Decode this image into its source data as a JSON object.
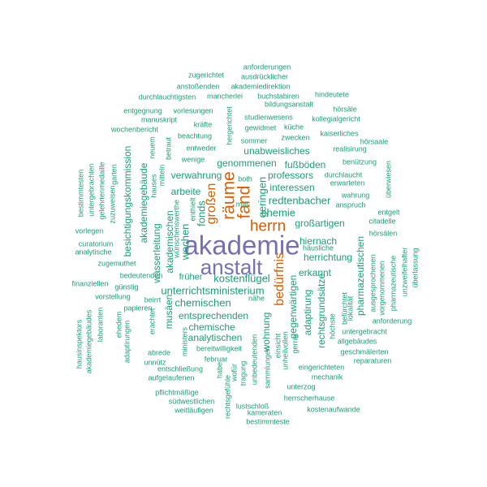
{
  "colors": {
    "purple": "#7670b3",
    "orange": "#d95f02",
    "green": "#1b9e77"
  },
  "words": [
    {
      "text": "akademie",
      "level": 1,
      "color": "purple"
    },
    {
      "text": "anstalt",
      "level": 2,
      "color": "purple"
    },
    {
      "text": "räume",
      "level": 3,
      "color": "orange"
    },
    {
      "text": "fand",
      "level": 3,
      "color": "orange"
    },
    {
      "text": "herrn",
      "level": 3,
      "color": "orange"
    },
    {
      "text": "bedürfnis",
      "level": 4,
      "color": "orange"
    },
    {
      "text": "großen",
      "level": 4,
      "color": "orange"
    },
    {
      "text": "chemie",
      "level": 5,
      "color": "green"
    },
    {
      "text": "redtenbacher",
      "level": 5,
      "color": "green"
    },
    {
      "text": "unterrichtsministerium",
      "level": 5,
      "color": "green"
    },
    {
      "text": "kostenflügel",
      "level": 5,
      "color": "green"
    },
    {
      "text": "geringen",
      "level": 5,
      "color": "green"
    },
    {
      "text": "fonds",
      "level": 5,
      "color": "green"
    },
    {
      "text": "wochen",
      "level": 5,
      "color": "green"
    },
    {
      "text": "chemischen",
      "level": 5,
      "color": "green"
    },
    {
      "text": "professors",
      "level": 5,
      "color": "green"
    },
    {
      "text": "unabweisliches",
      "level": 5,
      "color": "green"
    },
    {
      "text": "genommenen",
      "level": 5,
      "color": "green"
    },
    {
      "text": "verwahrung",
      "level": 5,
      "color": "green"
    },
    {
      "text": "arbeite",
      "level": 5,
      "color": "green"
    },
    {
      "text": "interessen",
      "level": 5,
      "color": "green"
    },
    {
      "text": "fußböden",
      "level": 5,
      "color": "green"
    },
    {
      "text": "entsprechenden",
      "level": 5,
      "color": "green"
    },
    {
      "text": "analytischen",
      "level": 5,
      "color": "green"
    },
    {
      "text": "chemische",
      "level": 5,
      "color": "green"
    },
    {
      "text": "früher",
      "level": 5,
      "color": "green"
    },
    {
      "text": "herrichtung",
      "level": 5,
      "color": "green"
    },
    {
      "text": "hiernach",
      "level": 5,
      "color": "green"
    },
    {
      "text": "großartigen",
      "level": 5,
      "color": "green"
    },
    {
      "text": "besichtigungskommission",
      "level": 5,
      "color": "green"
    },
    {
      "text": "wasserleitung",
      "level": 5,
      "color": "green"
    },
    {
      "text": "akademiegebäude",
      "level": 5,
      "color": "green"
    },
    {
      "text": "akademischen",
      "level": 5,
      "color": "green"
    },
    {
      "text": "musäen",
      "level": 5,
      "color": "green"
    },
    {
      "text": "wohnung",
      "level": 5,
      "color": "green"
    },
    {
      "text": "erkannt",
      "level": 5,
      "color": "green"
    },
    {
      "text": "pharmazeutischen",
      "level": 5,
      "color": "green"
    },
    {
      "text": "rechtsgrundsätze",
      "level": 5,
      "color": "green"
    },
    {
      "text": "gegenwärtigen",
      "level": 5,
      "color": "green"
    },
    {
      "text": "adaptirung",
      "level": 5,
      "color": "green"
    },
    {
      "text": "anforderungen",
      "level": 6,
      "color": "green"
    },
    {
      "text": "zugerichtet",
      "level": 6,
      "color": "green"
    },
    {
      "text": "ausdrücklicher",
      "level": 6,
      "color": "green"
    },
    {
      "text": "anstoßenden",
      "level": 6,
      "color": "green"
    },
    {
      "text": "akademiedirektion",
      "level": 6,
      "color": "green"
    },
    {
      "text": "durchlauchtigsten",
      "level": 6,
      "color": "green"
    },
    {
      "text": "mancherlei",
      "level": 6,
      "color": "green"
    },
    {
      "text": "buchstabiren",
      "level": 6,
      "color": "green"
    },
    {
      "text": "hindeutete",
      "level": 6,
      "color": "green"
    },
    {
      "text": "bildungsanstalt",
      "level": 6,
      "color": "green"
    },
    {
      "text": "entgegnung",
      "level": 6,
      "color": "green"
    },
    {
      "text": "vorlesungen",
      "level": 6,
      "color": "green"
    },
    {
      "text": "hörsäle",
      "level": 6,
      "color": "green"
    },
    {
      "text": "manuskript",
      "level": 6,
      "color": "green"
    },
    {
      "text": "kollegialgericht",
      "level": 6,
      "color": "green"
    },
    {
      "text": "studienwesens",
      "level": 6,
      "color": "green"
    },
    {
      "text": "hergerichtet",
      "level": 6,
      "color": "green"
    },
    {
      "text": "kräfte",
      "level": 6,
      "color": "green"
    },
    {
      "text": "gewidmet",
      "level": 6,
      "color": "green"
    },
    {
      "text": "küche",
      "level": 6,
      "color": "green"
    },
    {
      "text": "wochenbericht",
      "level": 6,
      "color": "green"
    },
    {
      "text": "beachtung",
      "level": 6,
      "color": "green"
    },
    {
      "text": "zwecken",
      "level": 6,
      "color": "green"
    },
    {
      "text": "kaiserliches",
      "level": 6,
      "color": "green"
    },
    {
      "text": "sommer",
      "level": 6,
      "color": "green"
    },
    {
      "text": "hörsaale",
      "level": 6,
      "color": "green"
    },
    {
      "text": "neuem",
      "level": 6,
      "color": "green"
    },
    {
      "text": "betraut",
      "level": 6,
      "color": "green"
    },
    {
      "text": "entweder",
      "level": 6,
      "color": "green"
    },
    {
      "text": "realisirung",
      "level": 6,
      "color": "green"
    },
    {
      "text": "wenige",
      "level": 6,
      "color": "green"
    },
    {
      "text": "benützung",
      "level": 6,
      "color": "green"
    },
    {
      "text": "mitteln",
      "level": 6,
      "color": "green"
    },
    {
      "text": "garten",
      "level": 6,
      "color": "green"
    },
    {
      "text": "bestimmtesten",
      "level": 6,
      "color": "green"
    },
    {
      "text": "untergebrachten",
      "level": 6,
      "color": "green"
    },
    {
      "text": "gelehrtenmedaille",
      "level": 6,
      "color": "green"
    },
    {
      "text": "zuzuweisen",
      "level": 6,
      "color": "green"
    },
    {
      "text": "hauses",
      "level": 6,
      "color": "green"
    },
    {
      "text": "wünschenswerthe",
      "level": 6,
      "color": "green"
    },
    {
      "text": "enthielt",
      "level": 6,
      "color": "green"
    },
    {
      "text": "both",
      "level": 6,
      "color": "green"
    },
    {
      "text": "mal",
      "level": 6,
      "color": "green"
    },
    {
      "text": "durchlaucht",
      "level": 6,
      "color": "green"
    },
    {
      "text": "erwarteten",
      "level": 6,
      "color": "green"
    },
    {
      "text": "überwiesen",
      "level": 6,
      "color": "green"
    },
    {
      "text": "wahrung",
      "level": 6,
      "color": "green"
    },
    {
      "text": "anspruch",
      "level": 6,
      "color": "green"
    },
    {
      "text": "entgelt",
      "level": 6,
      "color": "green"
    },
    {
      "text": "citadelle",
      "level": 6,
      "color": "green"
    },
    {
      "text": "vorlegen",
      "level": 6,
      "color": "green"
    },
    {
      "text": "curatorium",
      "level": 6,
      "color": "green"
    },
    {
      "text": "analytische",
      "level": 6,
      "color": "green"
    },
    {
      "text": "hörsälen",
      "level": 6,
      "color": "green"
    },
    {
      "text": "häusliche",
      "level": 6,
      "color": "green"
    },
    {
      "text": "zugemuthet",
      "level": 6,
      "color": "green"
    },
    {
      "text": "unzweifelhafter",
      "level": 6,
      "color": "green"
    },
    {
      "text": "überlassung",
      "level": 6,
      "color": "green"
    },
    {
      "text": "bedeutenden",
      "level": 6,
      "color": "green"
    },
    {
      "text": "ausgesprochenen",
      "level": 6,
      "color": "green"
    },
    {
      "text": "vorgenommenen",
      "level": 6,
      "color": "green"
    },
    {
      "text": "pharmazeutische",
      "level": 6,
      "color": "green"
    },
    {
      "text": "finanziellen",
      "level": 6,
      "color": "green"
    },
    {
      "text": "günstig",
      "level": 6,
      "color": "green"
    },
    {
      "text": "beirrt",
      "level": 6,
      "color": "green"
    },
    {
      "text": "nähe",
      "level": 6,
      "color": "green"
    },
    {
      "text": "vorstellung",
      "level": 6,
      "color": "green"
    },
    {
      "text": "papieren",
      "level": 6,
      "color": "green"
    },
    {
      "text": "erachtet",
      "level": 6,
      "color": "green"
    },
    {
      "text": "befürchtet",
      "level": 6,
      "color": "green"
    },
    {
      "text": "lokalität",
      "level": 6,
      "color": "green"
    },
    {
      "text": "höchste",
      "level": 6,
      "color": "green"
    },
    {
      "text": "anforderung",
      "level": 6,
      "color": "green"
    },
    {
      "text": "hausinspektors",
      "level": 6,
      "color": "green"
    },
    {
      "text": "akademiegebäudes",
      "level": 6,
      "color": "green"
    },
    {
      "text": "laboranten",
      "level": 6,
      "color": "green"
    },
    {
      "text": "ehedem",
      "level": 6,
      "color": "green"
    },
    {
      "text": "adaptirungen",
      "level": 6,
      "color": "green"
    },
    {
      "text": "untergebracht",
      "level": 6,
      "color": "green"
    },
    {
      "text": "allgebäudes",
      "level": 6,
      "color": "green"
    },
    {
      "text": "geschmälerten",
      "level": 6,
      "color": "green"
    },
    {
      "text": "reparaturen",
      "level": 6,
      "color": "green"
    },
    {
      "text": "bereitwilligkeit",
      "level": 6,
      "color": "green"
    },
    {
      "text": "ministers",
      "level": 6,
      "color": "green"
    },
    {
      "text": "abrede",
      "level": 6,
      "color": "green"
    },
    {
      "text": "unnütz",
      "level": 6,
      "color": "green"
    },
    {
      "text": "februar",
      "level": 6,
      "color": "green"
    },
    {
      "text": "entschließung",
      "level": 6,
      "color": "green"
    },
    {
      "text": "aufgelaufenen",
      "level": 6,
      "color": "green"
    },
    {
      "text": "eingerichteten",
      "level": 6,
      "color": "green"
    },
    {
      "text": "mechanik",
      "level": 6,
      "color": "green"
    },
    {
      "text": "pflichtmäßige",
      "level": 6,
      "color": "green"
    },
    {
      "text": "südwestlichen",
      "level": 6,
      "color": "green"
    },
    {
      "text": "weitläufigen",
      "level": 6,
      "color": "green"
    },
    {
      "text": "rechtsgefühle",
      "level": 6,
      "color": "green"
    },
    {
      "text": "habe",
      "level": 6,
      "color": "green"
    },
    {
      "text": "wofür",
      "level": 6,
      "color": "green"
    },
    {
      "text": "tragung",
      "level": 6,
      "color": "green"
    },
    {
      "text": "unbedeutenden",
      "level": 6,
      "color": "green"
    },
    {
      "text": "sammlungen",
      "level": 6,
      "color": "green"
    },
    {
      "text": "einsicht",
      "level": 6,
      "color": "green"
    },
    {
      "text": "unheilvollen",
      "level": 6,
      "color": "green"
    },
    {
      "text": "gerne",
      "level": 6,
      "color": "green"
    },
    {
      "text": "unterzog",
      "level": 6,
      "color": "green"
    },
    {
      "text": "herrscherhause",
      "level": 6,
      "color": "green"
    },
    {
      "text": "lustschloß",
      "level": 6,
      "color": "green"
    },
    {
      "text": "kameraten",
      "level": 6,
      "color": "green"
    },
    {
      "text": "kostenaufwande",
      "level": 6,
      "color": "green"
    },
    {
      "text": "bestimmteste",
      "level": 6,
      "color": "green"
    }
  ]
}
